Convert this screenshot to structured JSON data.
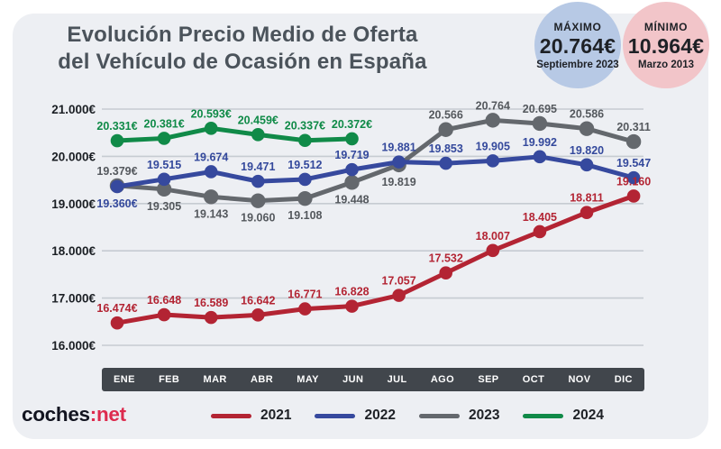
{
  "title": {
    "line1": "Evolución Precio Medio de Oferta",
    "line2": "del Vehículo de Ocasión en España"
  },
  "badges": {
    "max": {
      "label": "MÁXIMO",
      "value": "20.764€",
      "period": "Septiembre 2023",
      "bg": "#b7c9e5"
    },
    "min": {
      "label": "MÍNIMO",
      "value": "10.964€",
      "period": "Marzo 2013",
      "bg": "#f2c5c9"
    }
  },
  "logo": {
    "prefix": "coches",
    "separator": ":",
    "suffix": "net",
    "prefix_color": "#121420",
    "accent_color": "#dd2b4e"
  },
  "colors": {
    "card_bg": "#edeff3",
    "grid_line": "#c6cbd2",
    "axis_text": "#1b1f24",
    "month_bar_bg": "#41464c",
    "title_text": "#4b535b"
  },
  "chart_data": {
    "type": "line",
    "title": "Evolución Precio Medio de Oferta del Vehículo de Ocasión en España",
    "xlabel": "",
    "ylabel": "",
    "ylim": [
      16000,
      21000
    ],
    "grid": true,
    "legend_position": "bottom",
    "categories": [
      "ENE",
      "FEB",
      "MAR",
      "ABR",
      "MAY",
      "JUN",
      "JUL",
      "AGO",
      "SEP",
      "OCT",
      "NOV",
      "DIC"
    ],
    "y_tick_labels": [
      "21.000€",
      "20.000€",
      "19.000€",
      "18.000€",
      "17.000€",
      "16.000€"
    ],
    "y_tick_values": [
      21000,
      20000,
      19000,
      18000,
      17000,
      16000
    ],
    "series": [
      {
        "name": "2021",
        "color": "#b32433",
        "label_color": "#b32433",
        "values": [
          16474,
          16648,
          16589,
          16642,
          16771,
          16828,
          17057,
          17532,
          18007,
          18405,
          18811,
          19160
        ],
        "labels": [
          "16.474€",
          "16.648",
          "16.589",
          "16.642",
          "16.771",
          "16.828",
          "17.057",
          "17.532",
          "18.007",
          "18.405",
          "18.811",
          "19.160"
        ],
        "label_pos": [
          "above",
          "above",
          "above",
          "above",
          "above",
          "above",
          "above",
          "above",
          "above",
          "above",
          "above",
          "above"
        ]
      },
      {
        "name": "2022",
        "color": "#36499e",
        "label_color": "#34499c",
        "values": [
          19360,
          19515,
          19674,
          19471,
          19512,
          19719,
          19881,
          19853,
          19905,
          19992,
          19820,
          19547
        ],
        "labels": [
          "19.360€",
          "19.515",
          "19.674",
          "19.471",
          "19.512",
          "19.719",
          "19.881",
          "19.853",
          "19.905",
          "19.992",
          "19.820",
          "19.547"
        ],
        "label_pos": [
          "below",
          "above",
          "above",
          "above",
          "above",
          "above",
          "above",
          "above",
          "above",
          "above",
          "above",
          "above"
        ]
      },
      {
        "name": "2023",
        "color": "#64686d",
        "label_color": "#54585d",
        "values": [
          19379,
          19305,
          19143,
          19060,
          19108,
          19448,
          19819,
          20566,
          20764,
          20695,
          20586,
          20311
        ],
        "labels": [
          "19.379€",
          "19.305",
          "19.143",
          "19.060",
          "19.108",
          "19.448",
          "19.819",
          "20.566",
          "20.764",
          "20.695",
          "20.586",
          "20.311"
        ],
        "label_pos": [
          "above",
          "below",
          "below",
          "below",
          "below",
          "below",
          "below",
          "above",
          "above",
          "above",
          "above",
          "above"
        ]
      },
      {
        "name": "2024",
        "color": "#108a48",
        "label_color": "#0f8a47",
        "values": [
          20331,
          20381,
          20593,
          20459,
          20337,
          20372
        ],
        "labels": [
          "20.331€",
          "20.381€",
          "20.593€",
          "20.459€",
          "20.337€",
          "20.372€"
        ],
        "label_pos": [
          "above",
          "above",
          "above",
          "above",
          "above",
          "above"
        ]
      }
    ]
  }
}
